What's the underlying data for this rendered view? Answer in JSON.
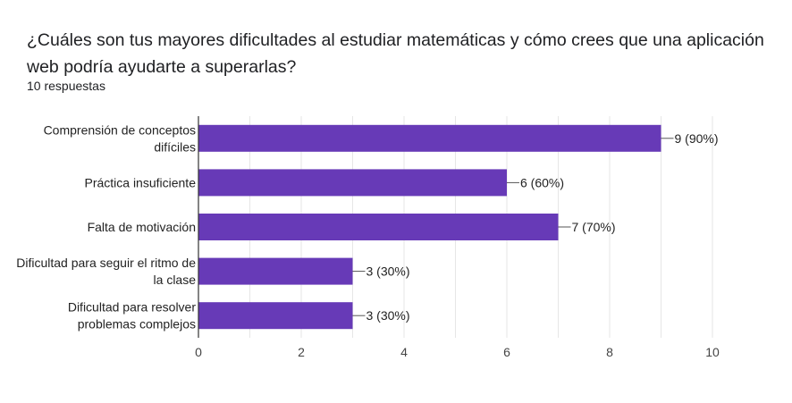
{
  "question": {
    "title": "¿Cuáles son tus mayores dificultades al estudiar matemáticas y cómo crees que una aplicación web podría ayudarte a superarlas?",
    "response_count": "10 respuestas"
  },
  "colors": {
    "bar": "#673ab7",
    "grid": "#e6e6e6",
    "axis": "#333333",
    "leader": "#555555"
  },
  "chart_data": {
    "type": "bar",
    "orientation": "horizontal",
    "categories": [
      [
        "Comprensión de conceptos",
        "difíciles"
      ],
      [
        "Práctica insuficiente"
      ],
      [
        "Falta de motivación"
      ],
      [
        "Dificultad para seguir el ritmo de",
        "la clase"
      ],
      [
        "Dificultad para resolver",
        "problemas complejos"
      ]
    ],
    "values": [
      9,
      6,
      7,
      3,
      3
    ],
    "value_labels": [
      "9 (90%)",
      "6 (60%)",
      "7 (70%)",
      "3 (30%)",
      "3 (30%)"
    ],
    "xlim": [
      0,
      10
    ],
    "xticks": [
      0,
      2,
      4,
      6,
      8,
      10
    ],
    "grid": true
  }
}
